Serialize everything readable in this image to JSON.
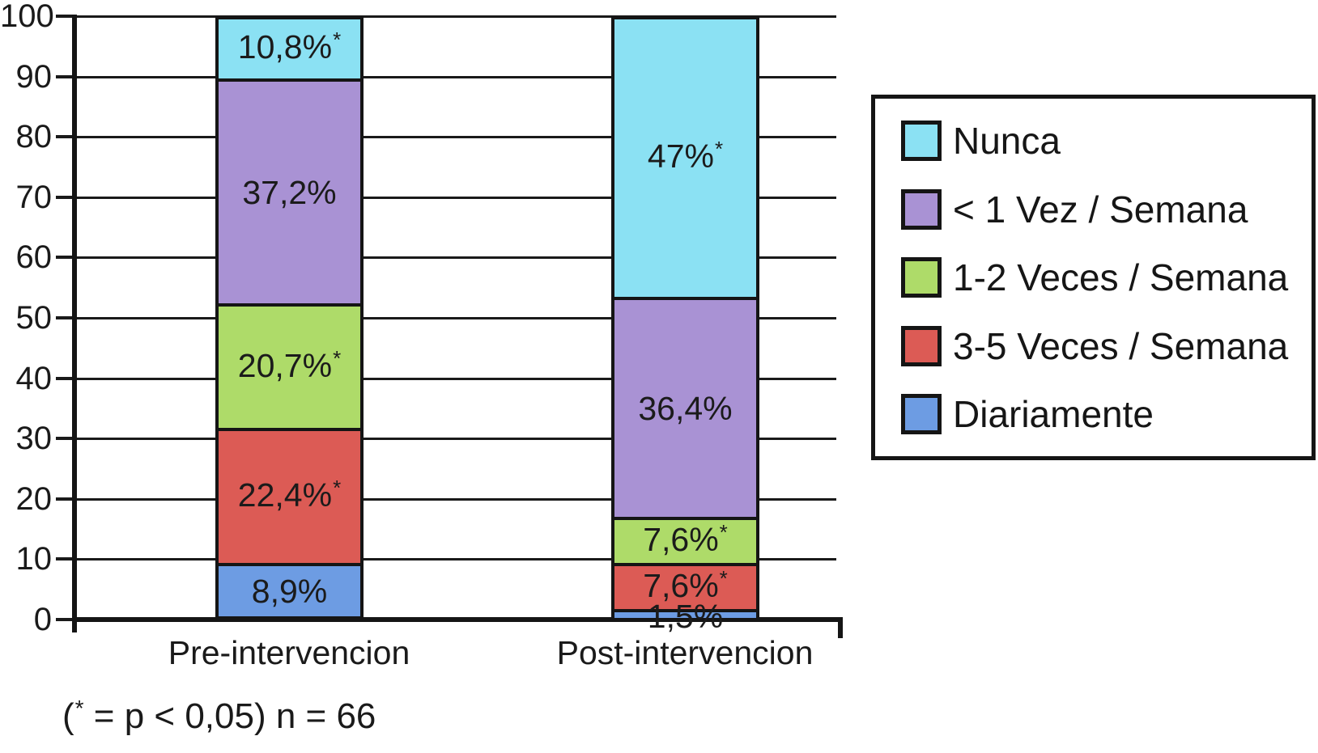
{
  "chart_data": {
    "type": "bar",
    "stacked": true,
    "title": "",
    "xlabel": "",
    "ylabel": "",
    "categories": [
      "Pre-intervencion",
      "Post-intervencion"
    ],
    "series": [
      {
        "name": "Nunca",
        "color": "#8BE1F3",
        "values": [
          10.8,
          47.0
        ],
        "labels": [
          "10,8%*",
          "47%*"
        ]
      },
      {
        "name": "< 1 Vez / Semana",
        "color": "#A992D4",
        "values": [
          37.2,
          36.4
        ],
        "labels": [
          "37,2%",
          "36,4%"
        ]
      },
      {
        "name": "1-2 Veces / Semana",
        "color": "#AEDB69",
        "values": [
          20.7,
          7.6
        ],
        "labels": [
          "20,7%*",
          "7,6%*"
        ]
      },
      {
        "name": "3-5 Veces / Semana",
        "color": "#DC5B55",
        "values": [
          22.4,
          7.6
        ],
        "labels": [
          "22,4%*",
          "7,6%*"
        ]
      },
      {
        "name": "Diariamente",
        "color": "#6D9CE3",
        "values": [
          8.9,
          1.5
        ],
        "labels": [
          "8,9%",
          "1,5%"
        ]
      }
    ],
    "ylim": [
      0,
      100
    ],
    "yticks": [
      0,
      10,
      20,
      30,
      40,
      50,
      60,
      70,
      80,
      90,
      100
    ],
    "grid": true,
    "legend_position": "right",
    "footnote": "(* = p < 0,05) n = 66",
    "colors": {
      "line": "#1a1a1a",
      "text": "#1b1b1b",
      "background": "#ffffff"
    }
  }
}
